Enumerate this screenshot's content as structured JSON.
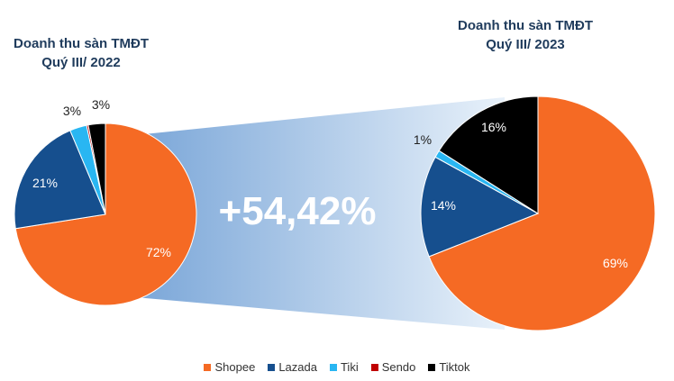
{
  "chart_data": [
    {
      "type": "pie",
      "title": "Doanh thu sàn TMĐT",
      "subtitle": "Quý III/ 2022",
      "categories": [
        "Shopee",
        "Lazada",
        "Tiki",
        "Sendo",
        "Tiktok"
      ],
      "values": [
        72,
        21,
        3,
        0.3,
        3
      ],
      "labels": [
        "72%",
        "21%",
        "3%",
        "",
        "3%"
      ]
    },
    {
      "type": "pie",
      "title": "Doanh thu sàn TMĐT",
      "subtitle": "Quý III/ 2023",
      "categories": [
        "Shopee",
        "Lazada",
        "Tiki",
        "Sendo",
        "Tiktok"
      ],
      "values": [
        69,
        14,
        1,
        0,
        16
      ],
      "labels": [
        "69%",
        "14%",
        "1%",
        "",
        "16%"
      ]
    }
  ],
  "growth_label": "+54,42%",
  "legend": [
    {
      "name": "Shopee",
      "color": "#f56a24"
    },
    {
      "name": "Lazada",
      "color": "#164f8e"
    },
    {
      "name": "Tiki",
      "color": "#29b6f2"
    },
    {
      "name": "Sendo",
      "color": "#c00000"
    },
    {
      "name": "Tiktok",
      "color": "#000000"
    }
  ],
  "colors": {
    "band_start": "#7aa6d8",
    "band_end": "#e8f1fa",
    "title": "#1f3b5c"
  }
}
